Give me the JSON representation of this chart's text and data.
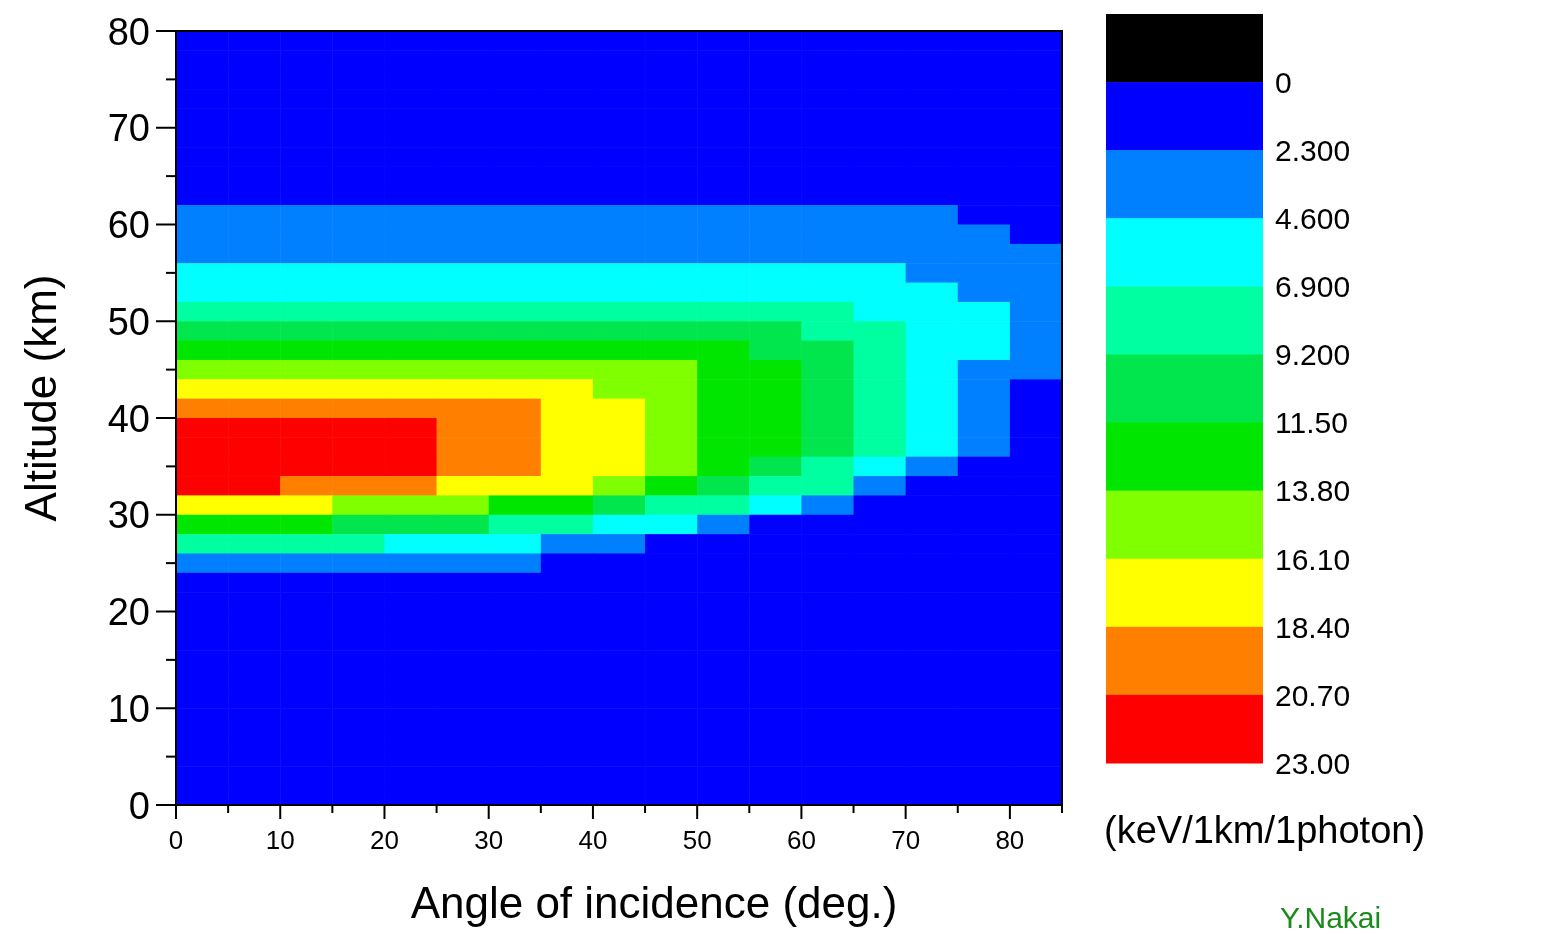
{
  "chart_data": {
    "type": "heatmap",
    "xlabel": "Angle of incidence (deg.)",
    "ylabel": "Altitude (km)",
    "clabel": "(keV/1km/1photon)",
    "annotations": [
      "Y.Nakai"
    ],
    "xlim": [
      0,
      85
    ],
    "ylim": [
      0,
      80
    ],
    "xticks": [
      0,
      {
        "value": 5,
        "label": null
      },
      10,
      {
        "value": 15,
        "label": null
      },
      20,
      {
        "value": 25,
        "label": null
      },
      30,
      {
        "value": 35,
        "label": null
      },
      40,
      {
        "value": 45,
        "label": null
      },
      50,
      {
        "value": 55,
        "label": null
      },
      60,
      {
        "value": 65,
        "label": null
      },
      70,
      {
        "value": 75,
        "label": null
      },
      80,
      {
        "value": 85,
        "label": null
      }
    ],
    "yticks": [
      0,
      {
        "value": 5,
        "label": null
      },
      10,
      {
        "value": 15,
        "label": null
      },
      20,
      {
        "value": 25,
        "label": null
      },
      30,
      {
        "value": 35,
        "label": null
      },
      40,
      {
        "value": 45,
        "label": null
      },
      50,
      {
        "value": 55,
        "label": null
      },
      60,
      {
        "value": 65,
        "label": null
      },
      70,
      {
        "value": 75,
        "label": null
      },
      80
    ],
    "clim": [
      -2.3,
      23
    ],
    "cticks": [
      0,
      {
        "value": 2.3,
        "label": "2.300"
      },
      {
        "value": 4.6,
        "label": "4.600"
      },
      {
        "value": 6.9,
        "label": "6.900"
      },
      {
        "value": 9.2,
        "label": "9.200"
      },
      {
        "value": 11.5,
        "label": "11.50"
      },
      {
        "value": 13.8,
        "label": "13.80"
      },
      {
        "value": 16.1,
        "label": "16.10"
      },
      {
        "value": 18.4,
        "label": "18.40"
      },
      {
        "value": 20.7,
        "label": "20.70"
      },
      {
        "value": 23,
        "label": "23.00"
      }
    ],
    "colors": [
      "#000000",
      "#0000ff",
      "#0080ff",
      "#00ffff",
      "#00ffa0",
      "#00e64c",
      "#00e600",
      "#80ff00",
      "#ffff00",
      "#ff8000",
      "#ff0000"
    ],
    "grid": false,
    "cells": [
      [
        1.15,
        1.15,
        1.15,
        1.15,
        1.15,
        1.15,
        1.15,
        1.15,
        1.15,
        1.15,
        1.15,
        1.15,
        1.15,
        1.15,
        1.15,
        1.15,
        1.15
      ],
      [
        1.15,
        1.15,
        1.15,
        1.15,
        1.15,
        1.15,
        1.15,
        1.15,
        1.15,
        1.15,
        1.15,
        1.15,
        1.15,
        1.15,
        1.15,
        1.15,
        1.15
      ],
      [
        1.15,
        1.15,
        1.15,
        1.15,
        1.15,
        1.15,
        1.15,
        1.15,
        1.15,
        1.15,
        1.15,
        1.15,
        1.15,
        1.15,
        1.15,
        1.15,
        1.15
      ],
      [
        1.15,
        1.15,
        1.15,
        1.15,
        1.15,
        1.15,
        1.15,
        1.15,
        1.15,
        1.15,
        1.15,
        1.15,
        1.15,
        1.15,
        1.15,
        1.15,
        1.15
      ],
      [
        1.15,
        1.15,
        1.15,
        1.15,
        1.15,
        1.15,
        1.15,
        1.15,
        1.15,
        1.15,
        1.15,
        1.15,
        1.15,
        1.15,
        1.15,
        1.15,
        1.15
      ],
      [
        1.15,
        1.15,
        1.15,
        1.15,
        1.15,
        1.15,
        1.15,
        1.15,
        1.15,
        1.15,
        1.15,
        1.15,
        1.15,
        1.15,
        1.15,
        1.15,
        1.15
      ],
      [
        1.15,
        1.15,
        1.15,
        1.15,
        1.15,
        1.15,
        1.15,
        1.15,
        1.15,
        1.15,
        1.15,
        1.15,
        1.15,
        1.15,
        1.15,
        1.15,
        1.15
      ],
      [
        1.15,
        1.15,
        1.15,
        1.15,
        1.15,
        1.15,
        1.15,
        1.15,
        1.15,
        1.15,
        1.15,
        1.15,
        1.15,
        1.15,
        1.15,
        1.15,
        1.15
      ],
      [
        1.15,
        1.15,
        1.15,
        1.15,
        1.15,
        1.15,
        1.15,
        1.15,
        1.15,
        1.15,
        1.15,
        1.15,
        1.15,
        1.15,
        1.15,
        1.15,
        1.15
      ],
      [
        3.45,
        3.45,
        3.45,
        3.45,
        3.45,
        3.45,
        3.45,
        3.45,
        3.45,
        3.45,
        3.45,
        3.45,
        3.45,
        3.45,
        3.45,
        1.15,
        1.15
      ],
      [
        3.45,
        3.45,
        3.45,
        3.45,
        3.45,
        3.45,
        3.45,
        3.45,
        3.45,
        3.45,
        3.45,
        3.45,
        3.45,
        3.45,
        3.45,
        3.45,
        1.15
      ],
      [
        3.45,
        3.45,
        3.45,
        3.45,
        3.45,
        3.45,
        3.45,
        3.45,
        3.45,
        3.45,
        3.45,
        3.45,
        3.45,
        3.45,
        3.45,
        3.45,
        3.45
      ],
      [
        5.75,
        5.75,
        5.75,
        5.75,
        5.75,
        5.75,
        5.75,
        5.75,
        5.75,
        5.75,
        5.75,
        5.75,
        5.75,
        5.75,
        3.45,
        3.45,
        3.45
      ],
      [
        5.75,
        5.75,
        5.75,
        5.75,
        5.75,
        5.75,
        5.75,
        5.75,
        5.75,
        5.75,
        5.75,
        5.75,
        5.75,
        5.75,
        5.75,
        3.45,
        3.45
      ],
      [
        8.05,
        8.05,
        8.05,
        8.05,
        8.05,
        8.05,
        8.05,
        8.05,
        8.05,
        8.05,
        8.05,
        8.05,
        8.05,
        5.75,
        5.75,
        5.75,
        3.45
      ],
      [
        10.35,
        10.35,
        10.35,
        10.35,
        10.35,
        10.35,
        10.35,
        10.35,
        10.35,
        10.35,
        10.35,
        10.35,
        8.05,
        8.05,
        5.75,
        5.75,
        3.45
      ],
      [
        12.65,
        12.65,
        12.65,
        12.65,
        12.65,
        12.65,
        12.65,
        12.65,
        12.65,
        12.65,
        12.65,
        10.35,
        10.35,
        8.05,
        5.75,
        5.75,
        3.45
      ],
      [
        14.95,
        14.95,
        14.95,
        14.95,
        14.95,
        14.95,
        14.95,
        14.95,
        14.95,
        14.95,
        12.65,
        12.65,
        10.35,
        8.05,
        5.75,
        3.45,
        3.45
      ],
      [
        17.25,
        17.25,
        17.25,
        17.25,
        17.25,
        17.25,
        17.25,
        17.25,
        14.95,
        14.95,
        12.65,
        12.65,
        10.35,
        8.05,
        5.75,
        3.45,
        1.15
      ],
      [
        19.55,
        19.55,
        19.55,
        19.55,
        19.55,
        19.55,
        19.55,
        17.25,
        17.25,
        14.95,
        12.65,
        12.65,
        10.35,
        8.05,
        5.75,
        3.45,
        1.15
      ],
      [
        21.85,
        21.85,
        21.85,
        21.85,
        21.85,
        19.55,
        19.55,
        17.25,
        17.25,
        14.95,
        12.65,
        12.65,
        10.35,
        8.05,
        5.75,
        3.45,
        1.15
      ],
      [
        21.85,
        21.85,
        21.85,
        21.85,
        21.85,
        19.55,
        19.55,
        17.25,
        17.25,
        14.95,
        12.65,
        12.65,
        10.35,
        8.05,
        5.75,
        3.45,
        1.15
      ],
      [
        21.85,
        21.85,
        21.85,
        21.85,
        21.85,
        19.55,
        19.55,
        17.25,
        17.25,
        14.95,
        12.65,
        10.35,
        8.05,
        5.75,
        3.45,
        1.15,
        1.15
      ],
      [
        21.85,
        21.85,
        19.55,
        19.55,
        19.55,
        17.25,
        17.25,
        17.25,
        14.95,
        12.65,
        10.35,
        8.05,
        8.05,
        3.45,
        1.15,
        1.15,
        1.15
      ],
      [
        17.25,
        17.25,
        17.25,
        14.95,
        14.95,
        14.95,
        12.65,
        12.65,
        10.35,
        8.05,
        8.05,
        5.75,
        3.45,
        1.15,
        1.15,
        1.15,
        1.15
      ],
      [
        12.65,
        12.65,
        12.65,
        10.35,
        10.35,
        10.35,
        8.05,
        8.05,
        5.75,
        5.75,
        3.45,
        1.15,
        1.15,
        1.15,
        1.15,
        1.15,
        1.15
      ],
      [
        8.05,
        8.05,
        8.05,
        8.05,
        5.75,
        5.75,
        5.75,
        3.45,
        3.45,
        1.15,
        1.15,
        1.15,
        1.15,
        1.15,
        1.15,
        1.15,
        1.15
      ],
      [
        3.45,
        3.45,
        3.45,
        3.45,
        3.45,
        3.45,
        3.45,
        1.15,
        1.15,
        1.15,
        1.15,
        1.15,
        1.15,
        1.15,
        1.15,
        1.15,
        1.15
      ],
      [
        1.15,
        1.15,
        1.15,
        1.15,
        1.15,
        1.15,
        1.15,
        1.15,
        1.15,
        1.15,
        1.15,
        1.15,
        1.15,
        1.15,
        1.15,
        1.15,
        1.15
      ],
      [
        1.15,
        1.15,
        1.15,
        1.15,
        1.15,
        1.15,
        1.15,
        1.15,
        1.15,
        1.15,
        1.15,
        1.15,
        1.15,
        1.15,
        1.15,
        1.15,
        1.15
      ],
      [
        1.15,
        1.15,
        1.15,
        1.15,
        1.15,
        1.15,
        1.15,
        1.15,
        1.15,
        1.15,
        1.15,
        1.15,
        1.15,
        1.15,
        1.15,
        1.15,
        1.15
      ],
      [
        1.15,
        1.15,
        1.15,
        1.15,
        1.15,
        1.15,
        1.15,
        1.15,
        1.15,
        1.15,
        1.15,
        1.15,
        1.15,
        1.15,
        1.15,
        1.15,
        1.15
      ],
      [
        1.15,
        1.15,
        1.15,
        1.15,
        1.15,
        1.15,
        1.15,
        1.15,
        1.15,
        1.15,
        1.15,
        1.15,
        1.15,
        1.15,
        1.15,
        1.15,
        1.15
      ],
      [
        1.15,
        1.15,
        1.15,
        1.15,
        1.15,
        1.15,
        1.15,
        1.15,
        1.15,
        1.15,
        1.15,
        1.15,
        1.15,
        1.15,
        1.15,
        1.15,
        1.15
      ],
      [
        1.15,
        1.15,
        1.15,
        1.15,
        1.15,
        1.15,
        1.15,
        1.15,
        1.15,
        1.15,
        1.15,
        1.15,
        1.15,
        1.15,
        1.15,
        1.15,
        1.15
      ],
      [
        1.15,
        1.15,
        1.15,
        1.15,
        1.15,
        1.15,
        1.15,
        1.15,
        1.15,
        1.15,
        1.15,
        1.15,
        1.15,
        1.15,
        1.15,
        1.15,
        1.15
      ],
      [
        1.15,
        1.15,
        1.15,
        1.15,
        1.15,
        1.15,
        1.15,
        1.15,
        1.15,
        1.15,
        1.15,
        1.15,
        1.15,
        1.15,
        1.15,
        1.15,
        1.15
      ],
      [
        1.15,
        1.15,
        1.15,
        1.15,
        1.15,
        1.15,
        1.15,
        1.15,
        1.15,
        1.15,
        1.15,
        1.15,
        1.15,
        1.15,
        1.15,
        1.15,
        1.15
      ],
      [
        1.15,
        1.15,
        1.15,
        1.15,
        1.15,
        1.15,
        1.15,
        1.15,
        1.15,
        1.15,
        1.15,
        1.15,
        1.15,
        1.15,
        1.15,
        1.15,
        1.15
      ],
      [
        1.15,
        1.15,
        1.15,
        1.15,
        1.15,
        1.15,
        1.15,
        1.15,
        1.15,
        1.15,
        1.15,
        1.15,
        1.15,
        1.15,
        1.15,
        1.15,
        1.15
      ]
    ]
  }
}
